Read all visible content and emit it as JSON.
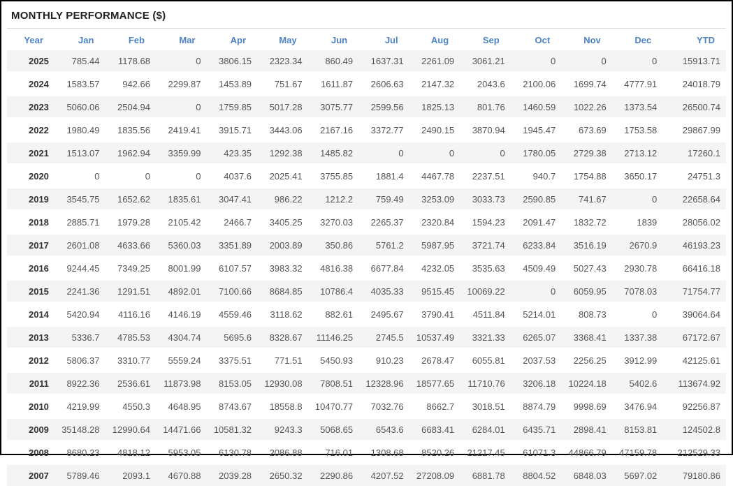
{
  "panel": {
    "title": "MONTHLY PERFORMANCE ($)"
  },
  "colors": {
    "header_text": "#4d82c4",
    "title_text": "#222222",
    "row_stripe": "#f4f4f4",
    "cell_text": "#555555",
    "year_text": "#333333",
    "frame_border": "#000000",
    "divider": "#d9d9d9"
  },
  "table": {
    "columns": [
      "Year",
      "Jan",
      "Feb",
      "Mar",
      "Apr",
      "May",
      "Jun",
      "Jul",
      "Aug",
      "Sep",
      "Oct",
      "Nov",
      "Dec",
      "YTD"
    ],
    "rows": [
      [
        "2025",
        "785.44",
        "1178.68",
        "0",
        "3806.15",
        "2323.34",
        "860.49",
        "1637.31",
        "2261.09",
        "3061.21",
        "0",
        "0",
        "0",
        "15913.71"
      ],
      [
        "2024",
        "1583.57",
        "942.66",
        "2299.87",
        "1453.89",
        "751.67",
        "1611.87",
        "2606.63",
        "2147.32",
        "2043.6",
        "2100.06",
        "1699.74",
        "4777.91",
        "24018.79"
      ],
      [
        "2023",
        "5060.06",
        "2504.94",
        "0",
        "1759.85",
        "5017.28",
        "3075.77",
        "2599.56",
        "1825.13",
        "801.76",
        "1460.59",
        "1022.26",
        "1373.54",
        "26500.74"
      ],
      [
        "2022",
        "1980.49",
        "1835.56",
        "2419.41",
        "3915.71",
        "3443.06",
        "2167.16",
        "3372.77",
        "2490.15",
        "3870.94",
        "1945.47",
        "673.69",
        "1753.58",
        "29867.99"
      ],
      [
        "2021",
        "1513.07",
        "1962.94",
        "3359.99",
        "423.35",
        "1292.38",
        "1485.82",
        "0",
        "0",
        "0",
        "1780.05",
        "2729.38",
        "2713.12",
        "17260.1"
      ],
      [
        "2020",
        "0",
        "0",
        "0",
        "4037.6",
        "2025.41",
        "3755.85",
        "1881.4",
        "4467.78",
        "2237.51",
        "940.7",
        "1754.88",
        "3650.17",
        "24751.3"
      ],
      [
        "2019",
        "3545.75",
        "1652.62",
        "1835.61",
        "3047.41",
        "986.22",
        "1212.2",
        "759.49",
        "3253.09",
        "3033.73",
        "2590.85",
        "741.67",
        "0",
        "22658.64"
      ],
      [
        "2018",
        "2885.71",
        "1979.28",
        "2105.42",
        "2466.7",
        "3405.25",
        "3270.03",
        "2265.37",
        "2320.84",
        "1594.23",
        "2091.47",
        "1832.72",
        "1839",
        "28056.02"
      ],
      [
        "2017",
        "2601.08",
        "4633.66",
        "5360.03",
        "3351.89",
        "2003.89",
        "350.86",
        "5761.2",
        "5987.95",
        "3721.74",
        "6233.84",
        "3516.19",
        "2670.9",
        "46193.23"
      ],
      [
        "2016",
        "9244.45",
        "7349.25",
        "8001.99",
        "6107.57",
        "3983.32",
        "4816.38",
        "6677.84",
        "4232.05",
        "3535.63",
        "4509.49",
        "5027.43",
        "2930.78",
        "66416.18"
      ],
      [
        "2015",
        "2241.36",
        "1291.51",
        "4892.01",
        "7100.66",
        "8684.85",
        "10786.4",
        "4035.33",
        "9515.45",
        "10069.22",
        "0",
        "6059.95",
        "7078.03",
        "71754.77"
      ],
      [
        "2014",
        "5420.94",
        "4116.16",
        "4146.19",
        "4559.46",
        "3118.62",
        "882.61",
        "2495.67",
        "3790.41",
        "4511.84",
        "5214.01",
        "808.73",
        "0",
        "39064.64"
      ],
      [
        "2013",
        "5336.7",
        "4785.53",
        "4304.74",
        "5695.6",
        "8328.67",
        "11146.25",
        "2745.5",
        "10537.49",
        "3321.33",
        "6265.07",
        "3368.41",
        "1337.38",
        "67172.67"
      ],
      [
        "2012",
        "5806.37",
        "3310.77",
        "5559.24",
        "3375.51",
        "771.51",
        "5450.93",
        "910.23",
        "2678.47",
        "6055.81",
        "2037.53",
        "2256.25",
        "3912.99",
        "42125.61"
      ],
      [
        "2011",
        "8922.36",
        "2536.61",
        "11873.98",
        "8153.05",
        "12930.08",
        "7808.51",
        "12328.96",
        "18577.65",
        "11710.76",
        "3206.18",
        "10224.18",
        "5402.6",
        "113674.92"
      ],
      [
        "2010",
        "4219.99",
        "4550.3",
        "4648.95",
        "8743.67",
        "18558.8",
        "10470.77",
        "7032.76",
        "8662.7",
        "3018.51",
        "8874.79",
        "9998.69",
        "3476.94",
        "92256.87"
      ],
      [
        "2009",
        "35148.28",
        "12990.64",
        "14471.66",
        "10581.32",
        "9243.3",
        "5068.65",
        "6543.6",
        "6683.41",
        "6284.01",
        "6435.71",
        "2898.41",
        "8153.81",
        "124502.8"
      ],
      [
        "2008",
        "8680.23",
        "4818.12",
        "5953.05",
        "6130.78",
        "2086.88",
        "716.01",
        "1308.68",
        "8520.26",
        "21217.45",
        "61071.3",
        "44866.79",
        "47159.78",
        "212529.33"
      ],
      [
        "2007",
        "5789.46",
        "2093.1",
        "4670.88",
        "2039.28",
        "2650.32",
        "2290.86",
        "4207.52",
        "27208.09",
        "6881.78",
        "8804.52",
        "6848.03",
        "5697.02",
        "79180.86"
      ]
    ]
  }
}
